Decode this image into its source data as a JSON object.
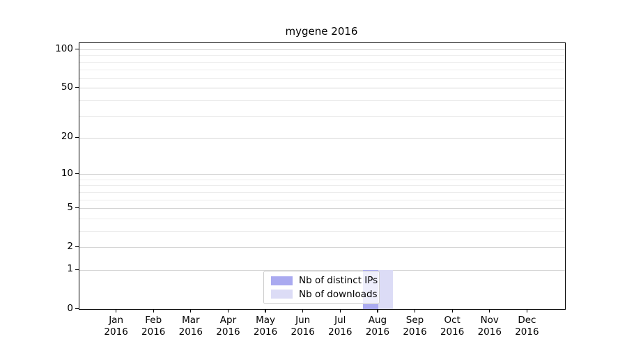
{
  "figure": {
    "background": "#ffffff"
  },
  "chart_data": {
    "type": "bar",
    "title": "mygene 2016",
    "categories": [
      {
        "month": "Jan",
        "year": "2016"
      },
      {
        "month": "Feb",
        "year": "2016"
      },
      {
        "month": "Mar",
        "year": "2016"
      },
      {
        "month": "Apr",
        "year": "2016"
      },
      {
        "month": "May",
        "year": "2016"
      },
      {
        "month": "Jun",
        "year": "2016"
      },
      {
        "month": "Jul",
        "year": "2016"
      },
      {
        "month": "Aug",
        "year": "2016"
      },
      {
        "month": "Sep",
        "year": "2016"
      },
      {
        "month": "Oct",
        "year": "2016"
      },
      {
        "month": "Nov",
        "year": "2016"
      },
      {
        "month": "Dec",
        "year": "2016"
      }
    ],
    "series": [
      {
        "name": "Nb of distinct IPs",
        "color": "#aaaaf0",
        "values": [
          0,
          0,
          0,
          0,
          0,
          0,
          0,
          1,
          0,
          0,
          0,
          0
        ]
      },
      {
        "name": "Nb of downloads",
        "color": "#dcdcf6",
        "values": [
          0,
          0,
          0,
          0,
          0,
          0,
          0,
          1,
          0,
          0,
          0,
          0
        ]
      }
    ],
    "yscale": "log1p",
    "ylim": [
      0,
      112
    ],
    "yticks_major": [
      0,
      1,
      2,
      5,
      10,
      20,
      50,
      100
    ],
    "yticks_minor": [
      3,
      4,
      6,
      7,
      8,
      9,
      30,
      40,
      60,
      70,
      80,
      90
    ],
    "xlabel": "",
    "ylabel": "",
    "grid": true,
    "legend_position": "lower center",
    "colors": {
      "grid_major": "#d5d5d5",
      "grid_minor": "#ececec",
      "spine": "#000000",
      "text": "#000000"
    }
  }
}
